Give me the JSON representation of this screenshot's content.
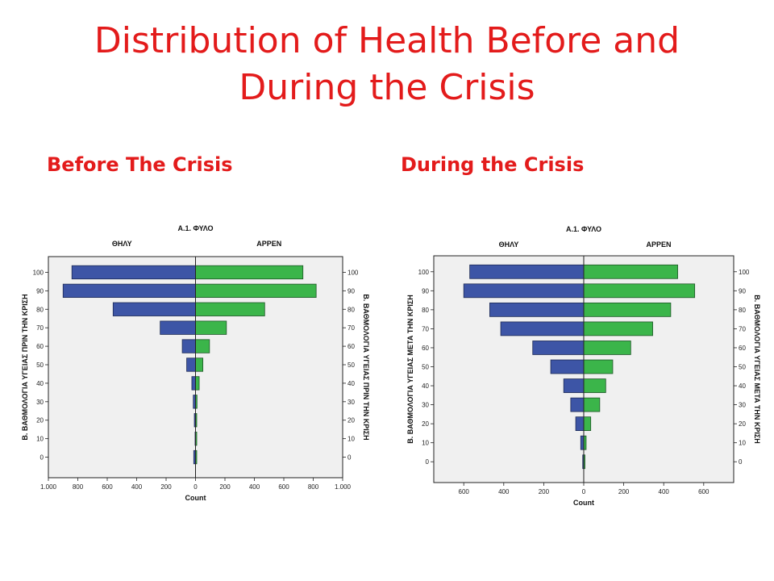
{
  "slide": {
    "title_line1": "Distribution of Health Before and",
    "title_line2": "During the Crisis",
    "left_heading": "Before The Crisis",
    "right_heading": "During the Crisis"
  },
  "colors": {
    "title": "#e31b1b",
    "female_bar": "#3d55a6",
    "male_bar": "#3bb54a",
    "plot_bg": "#f0f0f0"
  },
  "chart_data": [
    {
      "type": "bar",
      "orientation": "horizontal-population-pyramid",
      "title": "A.1. ΦΥΛΟ",
      "xlabel": "Count",
      "ylabel_left": "B. ΒΑΘΜΟΛΟΓΙΑ ΥΓΕΙΑΣ ΠΡΙΝ ΤΗΝ ΚΡΙΣΗ",
      "ylabel_right": "B. ΒΑΘΜΟΛΟΓΙΑ ΥΓΕΙΑΣ ΠΡΙΝ ΤΗΝ ΚΡΙΣΗ",
      "categories": [
        "0",
        "10",
        "20",
        "30",
        "40",
        "50",
        "60",
        "70",
        "80",
        "90",
        "100"
      ],
      "series": [
        {
          "name": "ΘΗΛΥ",
          "values": [
            12,
            3,
            8,
            15,
            25,
            60,
            90,
            240,
            560,
            900,
            840
          ]
        },
        {
          "name": "ΑΡΡΕΝ",
          "values": [
            8,
            2,
            6,
            10,
            25,
            50,
            95,
            210,
            470,
            820,
            730
          ]
        }
      ],
      "xlim": [
        -1000,
        1000
      ],
      "xticks": [
        -1000,
        -800,
        -600,
        -400,
        -200,
        0,
        200,
        400,
        600,
        800,
        1000
      ],
      "xtick_labels": [
        "1.000",
        "800",
        "600",
        "400",
        "200",
        "0",
        "200",
        "400",
        "600",
        "800",
        "1.000"
      ]
    },
    {
      "type": "bar",
      "orientation": "horizontal-population-pyramid",
      "title": "A.1. ΦΥΛΟ",
      "xlabel": "Count",
      "ylabel_left": "B. ΒΑΘΜΟΛΟΓΙΑ ΥΓΕΙΑΣ ΜΕΤΑ ΤΗΝ ΚΡΙΣΗ",
      "ylabel_right": "B. ΒΑΘΜΟΛΟΓΙΑ ΥΓΕΙΑΣ ΜΕΤΑ ΤΗΝ ΚΡΙΣΗ",
      "categories": [
        "0",
        "10",
        "20",
        "30",
        "40",
        "50",
        "60",
        "70",
        "80",
        "90",
        "100"
      ],
      "series": [
        {
          "name": "ΘΗΛΥ",
          "values": [
            5,
            15,
            40,
            65,
            100,
            165,
            255,
            415,
            470,
            600,
            570
          ]
        },
        {
          "name": "ΑΡΡΕΝ",
          "values": [
            5,
            12,
            35,
            80,
            110,
            145,
            235,
            345,
            435,
            555,
            470
          ]
        }
      ],
      "xlim": [
        -750,
        750
      ],
      "xticks": [
        -600,
        -400,
        -200,
        0,
        200,
        400,
        600
      ],
      "xtick_labels": [
        "600",
        "400",
        "200",
        "0",
        "200",
        "400",
        "600"
      ]
    }
  ]
}
